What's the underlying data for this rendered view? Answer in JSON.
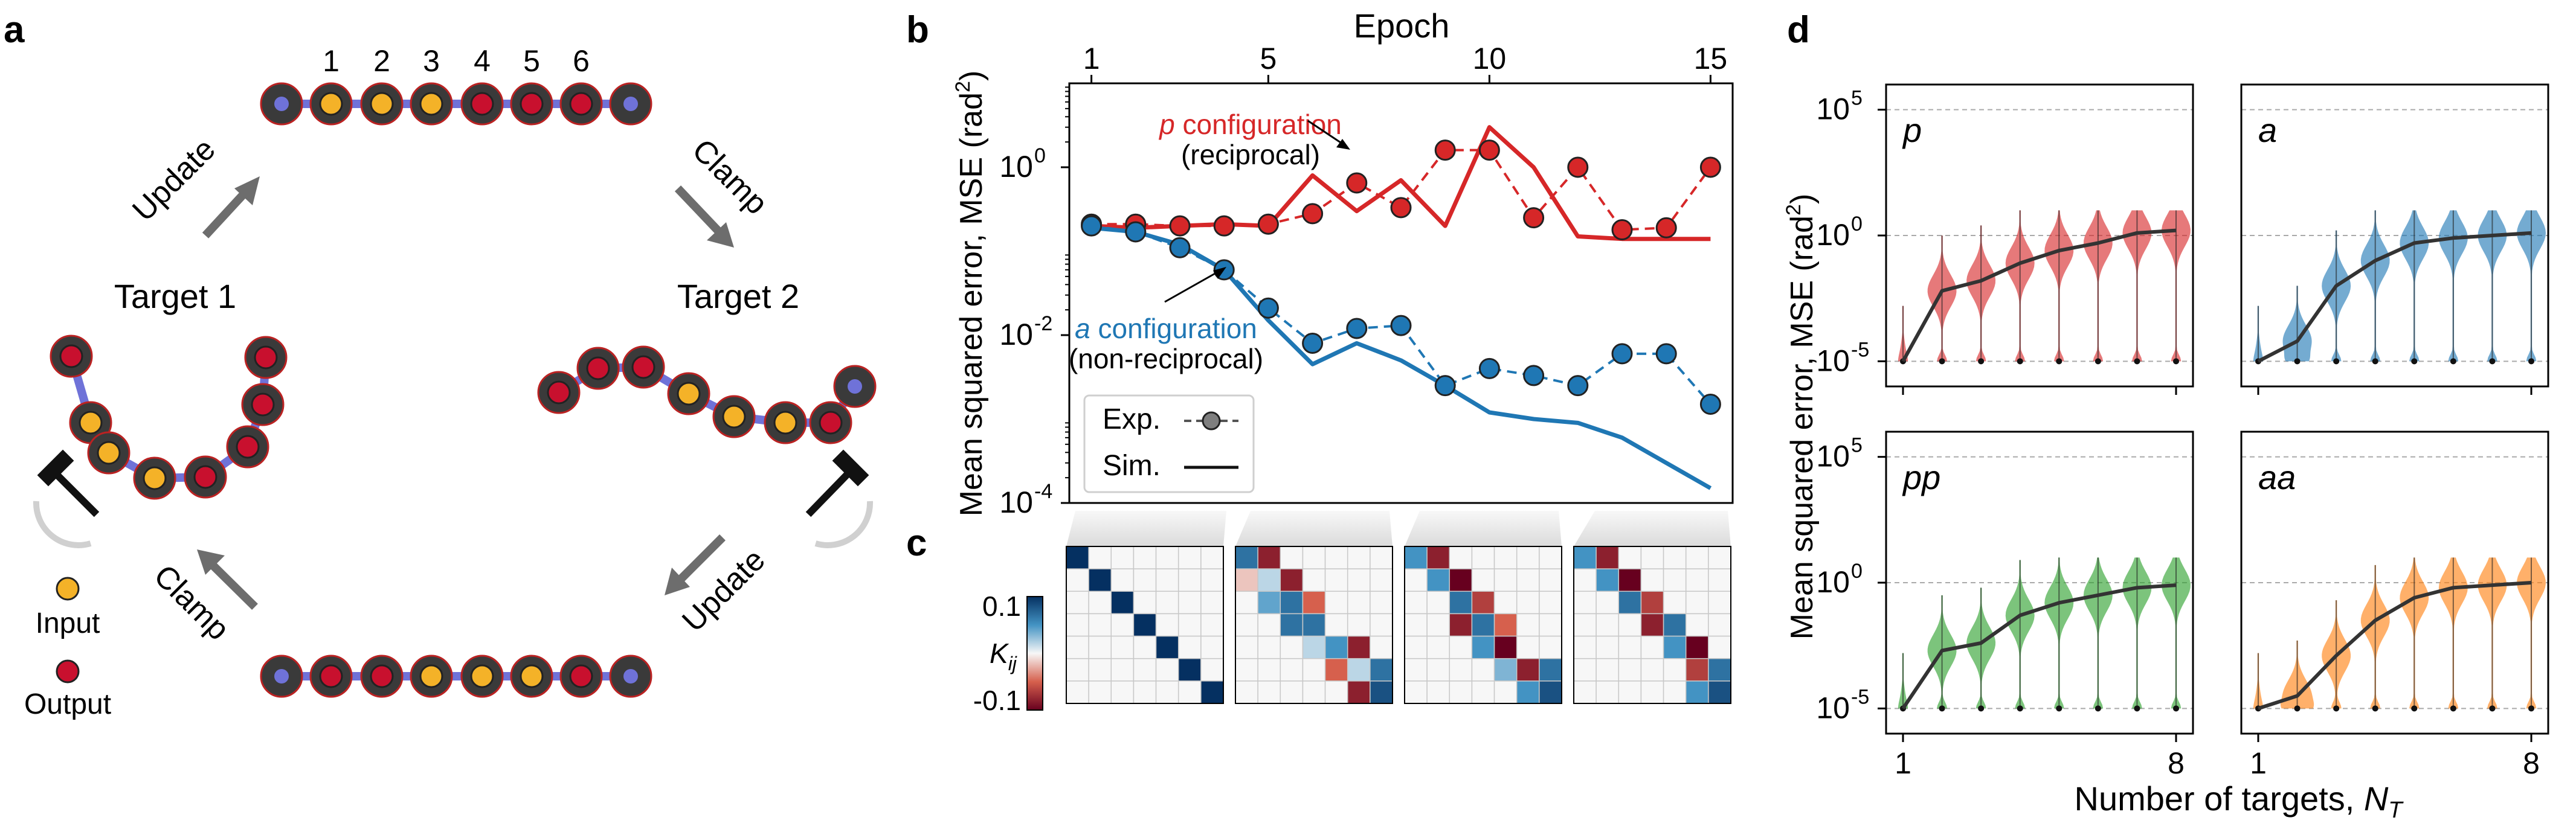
{
  "panel_labels": {
    "a": "a",
    "b": "b",
    "c": "c",
    "d": "d"
  },
  "panel_a": {
    "marker_numbers": [
      "1",
      "2",
      "3",
      "4",
      "5",
      "6"
    ],
    "arrow_labels": {
      "top_left": "Update",
      "top_right": "Clamp",
      "bottom_left": "Clamp",
      "bottom_right": "Update"
    },
    "target_1": "Target 1",
    "target_2": "Target 2",
    "legend": {
      "input": "Input",
      "output": "Output"
    },
    "colors": {
      "input": "#f4b228",
      "output": "#c8102e",
      "link": "#6f72d8"
    }
  },
  "chart_data": [
    {
      "id": "b",
      "type": "line",
      "title": "",
      "xlabel": "Epoch",
      "ylabel": "Mean squared error, MSE (rad²)",
      "ylabel_main": "Mean squared error, MSE (rad",
      "ylabel_sup": "2",
      "ylabel_tail": ")",
      "xscale": "linear",
      "yscale": "log",
      "xlim": [
        0.5,
        15.5
      ],
      "ylim": [
        0.0001,
        10
      ],
      "xticks": [
        "1",
        "5",
        "10",
        "15"
      ],
      "xtick_values": [
        1,
        5,
        10,
        15
      ],
      "ytick_values": [
        1,
        0.01,
        0.0001
      ],
      "yticks": [
        {
          "base": "10",
          "exp": "0"
        },
        {
          "base": "10",
          "exp": "-2"
        },
        {
          "base": "10",
          "exp": "-4"
        }
      ],
      "series": [
        {
          "kind": "exp",
          "config": "p",
          "color": "#d62728",
          "x": [
            1,
            2,
            3,
            4,
            5,
            6,
            7,
            8,
            9,
            10,
            11,
            12,
            13,
            14,
            15
          ],
          "y": [
            0.21,
            0.21,
            0.2,
            0.2,
            0.21,
            0.28,
            0.65,
            0.33,
            1.6,
            1.6,
            0.25,
            1.0,
            0.18,
            0.19,
            1.0
          ]
        },
        {
          "kind": "sim",
          "config": "p",
          "color": "#d62728",
          "x": [
            1,
            2,
            3,
            4,
            5,
            6,
            7,
            8,
            9,
            10,
            11,
            12,
            13,
            14,
            15
          ],
          "y": [
            0.2,
            0.19,
            0.2,
            0.21,
            0.2,
            0.8,
            0.3,
            0.7,
            0.2,
            3.0,
            1.0,
            0.15,
            0.14,
            0.14,
            0.14
          ]
        },
        {
          "kind": "exp",
          "config": "a",
          "color": "#1f77b4",
          "x": [
            1,
            2,
            3,
            4,
            5,
            6,
            7,
            8,
            9,
            10,
            11,
            12,
            13,
            14,
            15
          ],
          "y": [
            0.2,
            0.17,
            0.11,
            0.06,
            0.021,
            0.008,
            0.012,
            0.013,
            0.0025,
            0.004,
            0.0033,
            0.0025,
            0.006,
            0.006,
            0.0015
          ]
        },
        {
          "kind": "sim",
          "config": "a",
          "color": "#1f77b4",
          "x": [
            1,
            2,
            3,
            4,
            5,
            6,
            7,
            8,
            9,
            10,
            11,
            12,
            13,
            14,
            15
          ],
          "y": [
            0.19,
            0.17,
            0.12,
            0.06,
            0.015,
            0.0045,
            0.008,
            0.005,
            0.0025,
            0.0012,
            0.001,
            0.0009,
            0.0006,
            0.0003,
            0.00015
          ]
        }
      ],
      "annotations": {
        "p_italic": "p",
        "p_rest": " configuration",
        "p_line2": "(reciprocal)",
        "a_italic": "a",
        "a_rest": " configuration",
        "a_line2": "(non-reciprocal)"
      },
      "legend": {
        "exp": "Exp.",
        "sim": "Sim.",
        "placement": "lower-left"
      },
      "grid": false
    },
    {
      "id": "c",
      "type": "heatmap",
      "label_main": "K",
      "label_sub": "ij",
      "colorbar_ticks": [
        "0.1",
        "-0.1"
      ],
      "vmin": -0.12,
      "vmax": 0.12,
      "matrices": [
        [
          [
            0.12,
            0,
            0,
            0,
            0,
            0,
            0
          ],
          [
            0,
            0.12,
            0,
            0,
            0,
            0,
            0
          ],
          [
            0,
            0,
            0.12,
            0,
            0,
            0,
            0
          ],
          [
            0,
            0,
            0,
            0.12,
            0,
            0,
            0
          ],
          [
            0,
            0,
            0,
            0,
            0.12,
            0,
            0
          ],
          [
            0,
            0,
            0,
            0,
            0,
            0.12,
            0
          ],
          [
            0,
            0,
            0,
            0,
            0,
            0,
            0.12
          ]
        ],
        [
          [
            0.08,
            -0.1,
            0,
            0,
            0,
            0,
            0
          ],
          [
            -0.02,
            0.02,
            -0.1,
            0,
            0,
            0,
            0
          ],
          [
            0,
            0.05,
            0.08,
            -0.06,
            0,
            0,
            0
          ],
          [
            0,
            0,
            0.08,
            0.08,
            0,
            0,
            0
          ],
          [
            0,
            0,
            0,
            0.02,
            0.06,
            -0.1,
            0
          ],
          [
            0,
            0,
            0,
            0,
            -0.06,
            0.02,
            0.08
          ],
          [
            0,
            0,
            0,
            0,
            0,
            -0.1,
            0.1
          ]
        ],
        [
          [
            0.06,
            -0.1,
            0,
            0,
            0,
            0,
            0
          ],
          [
            0,
            0.06,
            -0.12,
            0,
            0,
            0,
            0
          ],
          [
            0,
            0,
            0.08,
            -0.08,
            0,
            0,
            0
          ],
          [
            0,
            0,
            -0.1,
            0.08,
            -0.06,
            0,
            0
          ],
          [
            0,
            0,
            0,
            0.06,
            -0.12,
            0,
            0
          ],
          [
            0,
            0,
            0,
            0,
            0.04,
            -0.1,
            0.08
          ],
          [
            0,
            0,
            0,
            0,
            0,
            0.06,
            0.1
          ]
        ],
        [
          [
            0.06,
            -0.1,
            0,
            0,
            0,
            0,
            0
          ],
          [
            0,
            0.06,
            -0.12,
            0,
            0,
            0,
            0
          ],
          [
            0,
            0,
            0.08,
            -0.08,
            0,
            0,
            0
          ],
          [
            0,
            0,
            0,
            -0.1,
            0.08,
            0,
            0
          ],
          [
            0,
            0,
            0,
            0,
            0.06,
            -0.12,
            0
          ],
          [
            0,
            0,
            0,
            0,
            0,
            -0.08,
            0.08
          ],
          [
            0,
            0,
            0,
            0,
            0,
            0.06,
            0.1
          ]
        ]
      ]
    },
    {
      "id": "d",
      "type": "violin",
      "xlabel_main": "Number of targets, ",
      "xlabel_italic": "N",
      "xlabel_sub": "T",
      "ylabel": "Mean squared error, MSE (rad²)",
      "ylabel_main": "Mean squared error, MSE (rad",
      "ylabel_sup": "2",
      "ylabel_tail": ")",
      "yscale": "log",
      "ylim_exp": [
        -6,
        6
      ],
      "yticks": [
        {
          "base": "10",
          "exp": "5"
        },
        {
          "base": "10",
          "exp": "0"
        },
        {
          "base": "10",
          "exp": "-5"
        }
      ],
      "ytick_exps": [
        5,
        0,
        -5
      ],
      "xticks": [
        "1",
        "8"
      ],
      "xtick_values": [
        1,
        8
      ],
      "x": [
        1,
        2,
        3,
        4,
        5,
        6,
        7,
        8
      ],
      "panels": [
        {
          "label": "p",
          "color": "#d62728",
          "median_exp": [
            -5,
            -2.2,
            -1.8,
            -1.1,
            -0.6,
            -0.3,
            0.1,
            0.2
          ]
        },
        {
          "label": "a",
          "color": "#1f77b4",
          "median_exp": [
            -5,
            -4.2,
            -2.0,
            -1.0,
            -0.3,
            -0.1,
            0.0,
            0.1
          ]
        },
        {
          "label": "pp",
          "color": "#2ca02c",
          "median_exp": [
            -5,
            -2.7,
            -2.4,
            -1.3,
            -0.8,
            -0.5,
            -0.2,
            -0.1
          ]
        },
        {
          "label": "aa",
          "color": "#ff7f0e",
          "median_exp": [
            -5,
            -4.5,
            -2.9,
            -1.5,
            -0.6,
            -0.2,
            -0.1,
            0.0
          ]
        }
      ]
    }
  ]
}
